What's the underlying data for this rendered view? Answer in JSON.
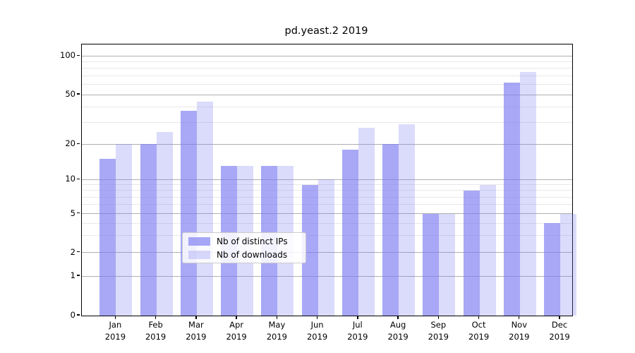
{
  "title": "pd.yeast.2 2019",
  "chart_data": {
    "type": "bar",
    "categories": [
      {
        "month": "Jan",
        "year": "2019"
      },
      {
        "month": "Feb",
        "year": "2019"
      },
      {
        "month": "Mar",
        "year": "2019"
      },
      {
        "month": "Apr",
        "year": "2019"
      },
      {
        "month": "May",
        "year": "2019"
      },
      {
        "month": "Jun",
        "year": "2019"
      },
      {
        "month": "Jul",
        "year": "2019"
      },
      {
        "month": "Aug",
        "year": "2019"
      },
      {
        "month": "Sep",
        "year": "2019"
      },
      {
        "month": "Oct",
        "year": "2019"
      },
      {
        "month": "Nov",
        "year": "2019"
      },
      {
        "month": "Dec",
        "year": "2019"
      }
    ],
    "series": [
      {
        "name": "Nb of distinct IPs",
        "color": "rgba(121,121,241,0.65)",
        "values": [
          15,
          20,
          37,
          13,
          13,
          9,
          18,
          20,
          5,
          8,
          62,
          4
        ]
      },
      {
        "name": "Nb of downloads",
        "color": "rgba(121,121,241,0.27)",
        "values": [
          20,
          25,
          44,
          13,
          13,
          10,
          27,
          29,
          5,
          9,
          75,
          5
        ]
      }
    ],
    "title": "pd.yeast.2 2019",
    "xlabel": "",
    "ylabel": "",
    "yscale": "symlog",
    "ylim": [
      0,
      130
    ],
    "ytick_labels": [
      "100",
      "50",
      "20",
      "10",
      "5",
      "2",
      "1",
      "0"
    ],
    "ytick_values": [
      100,
      50,
      20,
      10,
      5,
      2,
      1,
      0
    ],
    "minor_gridlines": [
      3,
      4,
      6,
      7,
      8,
      9,
      30,
      40,
      60,
      70,
      80,
      90
    ],
    "grid": true,
    "legend_position": "lower center"
  }
}
